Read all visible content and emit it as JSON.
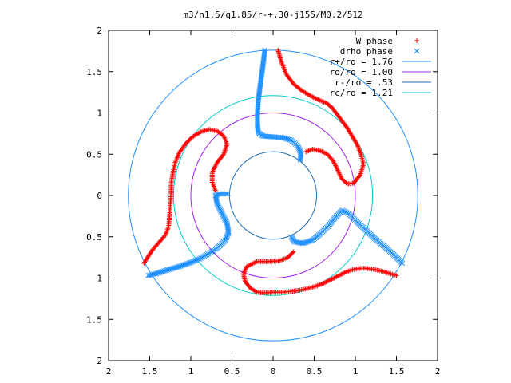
{
  "chart_data": {
    "type": "scatter",
    "title": "m3/n1.5/q1.85/r-+.30-j155/M0.2/512",
    "xlabel": "",
    "ylabel": "",
    "xlim": [
      -2,
      2
    ],
    "ylim": [
      -2,
      2
    ],
    "x_ticks": [
      -2,
      -1.5,
      -1,
      -0.5,
      0,
      0.5,
      1,
      1.5,
      2
    ],
    "y_ticks": [
      -2,
      -1.5,
      -1,
      -0.5,
      0,
      0.5,
      1,
      1.5,
      2
    ],
    "x_tick_labels": [
      "2",
      "1.5",
      "1",
      "0.5",
      "0",
      "0.5",
      "1",
      "1.5",
      "2"
    ],
    "y_tick_labels": [
      "2",
      "1.5",
      "1",
      "0.5",
      "0",
      "0.5",
      "1",
      "1.5",
      "2"
    ],
    "grid": false,
    "legend_position": "top-right",
    "series": [
      {
        "name": "W phase",
        "kind": "points",
        "marker": "plus",
        "color": "#ff0000",
        "arms": [
          [
            [
              0.06,
              1.76
            ],
            [
              0.1,
              1.62
            ],
            [
              0.16,
              1.47
            ],
            [
              0.25,
              1.35
            ],
            [
              0.35,
              1.27
            ],
            [
              0.45,
              1.21
            ],
            [
              0.55,
              1.16
            ],
            [
              0.65,
              1.12
            ],
            [
              0.72,
              1.06
            ],
            [
              0.78,
              0.98
            ],
            [
              0.84,
              0.9
            ],
            [
              0.9,
              0.82
            ],
            [
              0.96,
              0.72
            ],
            [
              1.02,
              0.62
            ],
            [
              1.07,
              0.5
            ],
            [
              1.1,
              0.38
            ],
            [
              1.06,
              0.25
            ],
            [
              0.98,
              0.15
            ],
            [
              0.9,
              0.14
            ],
            [
              0.83,
              0.21
            ],
            [
              0.78,
              0.32
            ],
            [
              0.73,
              0.42
            ],
            [
              0.66,
              0.5
            ],
            [
              0.58,
              0.54
            ],
            [
              0.48,
              0.56
            ],
            [
              0.4,
              0.53
            ]
          ],
          [
            [
              1.5,
              -0.97
            ],
            [
              1.4,
              -0.94
            ],
            [
              1.3,
              -0.91
            ],
            [
              1.2,
              -0.89
            ],
            [
              1.1,
              -0.88
            ],
            [
              1.0,
              -0.89
            ],
            [
              0.9,
              -0.92
            ],
            [
              0.8,
              -0.97
            ],
            [
              0.7,
              -1.02
            ],
            [
              0.6,
              -1.07
            ],
            [
              0.48,
              -1.11
            ],
            [
              0.36,
              -1.14
            ],
            [
              0.24,
              -1.16
            ],
            [
              0.12,
              -1.17
            ],
            [
              0.0,
              -1.17
            ],
            [
              -0.1,
              -1.18
            ],
            [
              -0.2,
              -1.17
            ],
            [
              -0.28,
              -1.12
            ],
            [
              -0.34,
              -1.04
            ],
            [
              -0.36,
              -0.95
            ],
            [
              -0.32,
              -0.86
            ],
            [
              -0.2,
              -0.8
            ],
            [
              -0.05,
              -0.8
            ],
            [
              0.08,
              -0.79
            ],
            [
              0.18,
              -0.75
            ],
            [
              0.25,
              -0.68
            ]
          ],
          [
            [
              -1.57,
              -0.82
            ],
            [
              -1.52,
              -0.74
            ],
            [
              -1.46,
              -0.65
            ],
            [
              -1.38,
              -0.56
            ],
            [
              -1.31,
              -0.48
            ],
            [
              -1.27,
              -0.38
            ],
            [
              -1.26,
              -0.26
            ],
            [
              -1.25,
              -0.12
            ],
            [
              -1.24,
              0.02
            ],
            [
              -1.24,
              0.14
            ],
            [
              -1.22,
              0.26
            ],
            [
              -1.19,
              0.4
            ],
            [
              -1.14,
              0.52
            ],
            [
              -1.06,
              0.63
            ],
            [
              -0.98,
              0.71
            ],
            [
              -0.88,
              0.77
            ],
            [
              -0.78,
              0.8
            ],
            [
              -0.68,
              0.78
            ],
            [
              -0.6,
              0.72
            ],
            [
              -0.56,
              0.62
            ],
            [
              -0.6,
              0.5
            ],
            [
              -0.68,
              0.4
            ],
            [
              -0.74,
              0.28
            ],
            [
              -0.74,
              0.16
            ],
            [
              -0.7,
              0.06
            ]
          ]
        ]
      },
      {
        "name": "drho phase",
        "kind": "points",
        "marker": "cross",
        "color": "#1e90ff",
        "arms": [
          [
            [
              -0.1,
              1.76
            ],
            [
              -0.12,
              1.6
            ],
            [
              -0.14,
              1.45
            ],
            [
              -0.16,
              1.3
            ],
            [
              -0.18,
              1.15
            ],
            [
              -0.19,
              1.0
            ],
            [
              -0.19,
              0.85
            ],
            [
              -0.18,
              0.76
            ],
            [
              -0.12,
              0.72
            ],
            [
              0.0,
              0.71
            ],
            [
              0.12,
              0.7
            ],
            [
              0.22,
              0.67
            ],
            [
              0.3,
              0.6
            ],
            [
              0.34,
              0.51
            ],
            [
              0.33,
              0.43
            ]
          ],
          [
            [
              1.57,
              -0.82
            ],
            [
              1.48,
              -0.73
            ],
            [
              1.38,
              -0.64
            ],
            [
              1.26,
              -0.54
            ],
            [
              1.14,
              -0.43
            ],
            [
              1.02,
              -0.32
            ],
            [
              0.92,
              -0.22
            ],
            [
              0.84,
              -0.18
            ],
            [
              0.76,
              -0.26
            ],
            [
              0.68,
              -0.36
            ],
            [
              0.58,
              -0.46
            ],
            [
              0.48,
              -0.54
            ],
            [
              0.36,
              -0.58
            ],
            [
              0.26,
              -0.56
            ],
            [
              0.22,
              -0.5
            ]
          ],
          [
            [
              -1.52,
              -0.97
            ],
            [
              -1.4,
              -0.94
            ],
            [
              -1.28,
              -0.9
            ],
            [
              -1.14,
              -0.86
            ],
            [
              -1.0,
              -0.81
            ],
            [
              -0.88,
              -0.76
            ],
            [
              -0.76,
              -0.69
            ],
            [
              -0.66,
              -0.62
            ],
            [
              -0.58,
              -0.54
            ],
            [
              -0.54,
              -0.45
            ],
            [
              -0.56,
              -0.34
            ],
            [
              -0.62,
              -0.22
            ],
            [
              -0.68,
              -0.1
            ],
            [
              -0.7,
              0.0
            ],
            [
              -0.66,
              0.02
            ],
            [
              -0.55,
              0.02
            ]
          ]
        ]
      },
      {
        "name": "r+/ro = 1.76",
        "kind": "circle",
        "radius": 1.76,
        "color": "#1e90ff"
      },
      {
        "name": "ro/ro = 1.00",
        "kind": "circle",
        "radius": 1.0,
        "color": "#a020f0"
      },
      {
        "name": "r-/ro = .53",
        "kind": "circle",
        "radius": 0.53,
        "color": "#1e6eb4"
      },
      {
        "name": "rc/ro = 1.21",
        "kind": "circle",
        "radius": 1.21,
        "color": "#00cccc"
      }
    ]
  }
}
